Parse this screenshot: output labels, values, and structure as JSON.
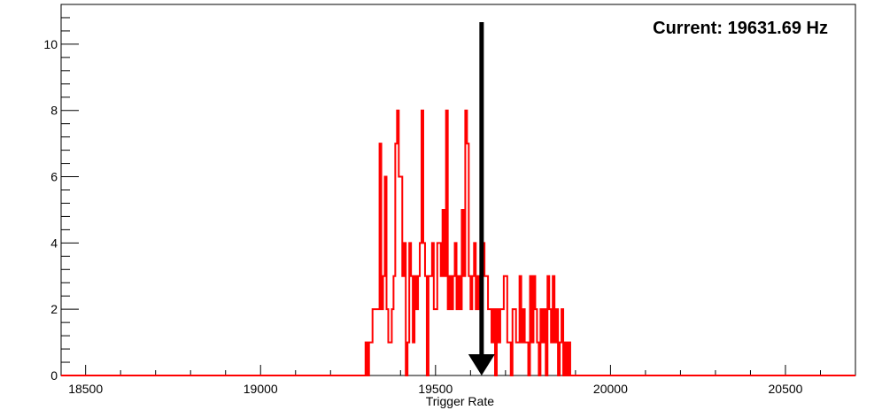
{
  "chart_data": {
    "type": "histogram",
    "title": "",
    "xlabel": "Trigger Rate",
    "ylabel": "",
    "xlim": [
      18430,
      20700
    ],
    "ylim": [
      0,
      11.2
    ],
    "x_ticks": [
      18500,
      19000,
      19500,
      20000,
      20500
    ],
    "y_ticks": [
      0,
      2,
      4,
      6,
      8,
      10
    ],
    "grid": false,
    "legend": "none",
    "series": [
      {
        "color": "#ff0000",
        "bin_width": 5,
        "x": [
          19300,
          19305,
          19310,
          19315,
          19320,
          19325,
          19330,
          19335,
          19340,
          19345,
          19350,
          19355,
          19360,
          19365,
          19370,
          19375,
          19380,
          19385,
          19390,
          19395,
          19400,
          19405,
          19410,
          19415,
          19420,
          19425,
          19430,
          19435,
          19440,
          19445,
          19450,
          19455,
          19460,
          19465,
          19470,
          19475,
          19480,
          19485,
          19490,
          19495,
          19500,
          19505,
          19510,
          19515,
          19520,
          19525,
          19530,
          19535,
          19540,
          19545,
          19550,
          19555,
          19560,
          19565,
          19570,
          19575,
          19580,
          19585,
          19590,
          19595,
          19600,
          19605,
          19610,
          19615,
          19620,
          19625,
          19630,
          19635,
          19640,
          19645,
          19650,
          19655,
          19660,
          19665,
          19670,
          19675,
          19680,
          19685,
          19690,
          19695,
          19700,
          19705,
          19710,
          19715,
          19720,
          19725,
          19730,
          19735,
          19740,
          19745,
          19750,
          19755,
          19760,
          19765,
          19770,
          19775,
          19780,
          19785,
          19790,
          19795,
          19800,
          19805,
          19810,
          19815,
          19820,
          19825,
          19830,
          19835,
          19840,
          19845,
          19850,
          19855,
          19860,
          19865,
          19870,
          19875,
          19880,
          19885,
          19890,
          19895,
          19900,
          19905,
          19910,
          19915,
          19920,
          19925,
          19930,
          19935,
          19940,
          19945,
          19950,
          19955,
          19960,
          19965,
          19970,
          19975
        ],
        "counts": [
          1,
          0,
          1,
          1,
          2,
          2,
          2,
          2,
          7,
          2,
          3,
          6,
          2,
          1,
          1,
          2,
          3,
          7,
          8,
          6,
          6,
          3,
          4,
          0,
          1,
          4,
          3,
          1,
          3,
          2,
          3,
          4,
          8,
          4,
          3,
          0,
          3,
          3,
          4,
          2,
          2,
          4,
          4,
          3,
          5,
          3,
          8,
          2,
          3,
          2,
          3,
          4,
          2,
          3,
          2,
          5,
          3,
          8,
          7,
          3,
          2,
          3,
          4,
          2,
          3,
          2,
          3,
          4,
          3,
          3,
          2,
          2,
          1,
          2,
          0,
          2,
          1,
          2,
          2,
          3,
          3,
          1,
          1,
          0,
          2,
          2,
          1,
          1,
          3,
          1,
          2,
          1,
          1,
          0,
          3,
          1,
          3,
          2,
          1,
          0,
          2,
          1,
          2,
          0,
          3,
          2,
          1,
          3,
          1,
          2,
          0,
          1,
          2,
          0,
          1,
          0,
          1,
          0,
          0,
          0,
          0,
          0,
          0,
          0,
          0,
          0,
          0,
          0,
          0,
          0,
          0,
          0,
          0,
          0,
          0,
          0
        ]
      }
    ],
    "marker": {
      "x": 19631.69,
      "label": "Current: 19631.69 Hz",
      "color": "#000000"
    }
  }
}
